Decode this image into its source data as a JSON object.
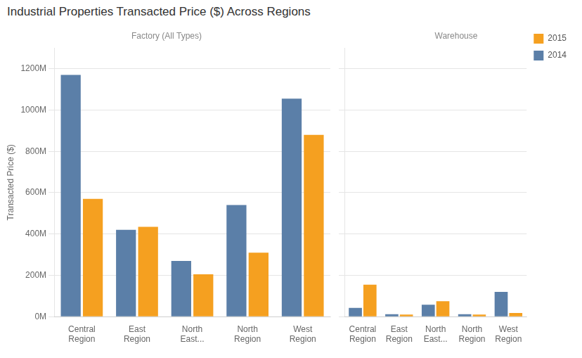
{
  "chart_data": [
    {
      "type": "bar",
      "title": "Industrial Properties Transacted Price ($) Across Regions",
      "subtitle": "Factory (All Types)",
      "ylabel": "Transacted Price ($)",
      "categories": [
        "Central\nRegion",
        "East\nRegion",
        "North\nEast...",
        "North\nRegion",
        "West\nRegion"
      ],
      "series": [
        {
          "name": "2014",
          "color": "#5B7FA8",
          "values": [
            1170000000,
            420000000,
            270000000,
            540000000,
            1055000000
          ]
        },
        {
          "name": "2015",
          "color": "#F5A020",
          "values": [
            570000000,
            435000000,
            205000000,
            310000000,
            880000000
          ]
        }
      ],
      "ylim": [
        0,
        1300000000
      ],
      "yticks": [
        {
          "value": 0,
          "label": "0M"
        },
        {
          "value": 200000000,
          "label": "200M"
        },
        {
          "value": 400000000,
          "label": "400M"
        },
        {
          "value": 600000000,
          "label": "600M"
        },
        {
          "value": 800000000,
          "label": "800M"
        },
        {
          "value": 1000000000,
          "label": "1000M"
        },
        {
          "value": 1200000000,
          "label": "1200M"
        }
      ],
      "grid": true
    },
    {
      "type": "bar",
      "subtitle": "Warehouse",
      "categories": [
        "Central\nRegion",
        "East\nRegion",
        "North\nEast...",
        "North\nRegion",
        "West\nRegion"
      ],
      "series": [
        {
          "name": "2014",
          "color": "#5B7FA8",
          "values": [
            42000000,
            12000000,
            58000000,
            12000000,
            120000000
          ]
        },
        {
          "name": "2015",
          "color": "#F5A020",
          "values": [
            155000000,
            10000000,
            75000000,
            10000000,
            18000000
          ]
        }
      ],
      "ylim": [
        0,
        1300000000
      ],
      "yticks": [
        {
          "value": 0,
          "label": "0M"
        },
        {
          "value": 200000000,
          "label": "200M"
        },
        {
          "value": 400000000,
          "label": "400M"
        },
        {
          "value": 600000000,
          "label": "600M"
        },
        {
          "value": 800000000,
          "label": "800M"
        },
        {
          "value": 1000000000,
          "label": "1000M"
        },
        {
          "value": 1200000000,
          "label": "1200M"
        }
      ],
      "grid": true,
      "tick_labels": "x",
      "legend": "upper right"
    }
  ]
}
